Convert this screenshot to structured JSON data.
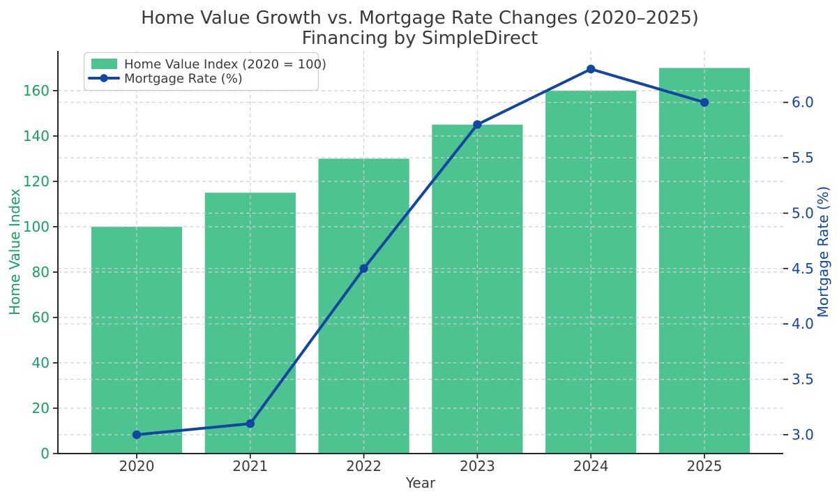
{
  "chart_data": {
    "type": "bar+line",
    "title": "Home Value Growth vs. Mortgage Rate Changes (2020–2025)",
    "subtitle": "Financing by SimpleDirect",
    "xlabel": "Year",
    "categories": [
      "2020",
      "2021",
      "2022",
      "2023",
      "2024",
      "2025"
    ],
    "series": [
      {
        "name": "Home Value Index (2020 = 100)",
        "type": "bar",
        "axis": "left",
        "color": "#4dc490",
        "values": [
          100,
          115,
          130,
          145,
          160,
          170
        ]
      },
      {
        "name": "Mortgage Rate (%)",
        "type": "line",
        "axis": "right",
        "color": "#1246a0",
        "values": [
          3.0,
          3.1,
          4.5,
          5.8,
          6.3,
          6.0
        ]
      }
    ],
    "left_axis": {
      "label": "Home Value Index",
      "color": "#16a05e",
      "ticks": [
        0,
        20,
        40,
        60,
        80,
        100,
        120,
        140,
        160
      ],
      "range": [
        0,
        177.5
      ]
    },
    "right_axis": {
      "label": "Mortgage Rate (%)",
      "color": "#1246a0",
      "ticks": [
        3.0,
        3.5,
        4.0,
        4.5,
        5.0,
        5.5,
        6.0
      ],
      "decimals": 1,
      "range": [
        2.83,
        6.464
      ]
    },
    "x_axis": {
      "color": "#3a3a3a"
    },
    "legend": {
      "position": "upper left"
    },
    "grid": true,
    "colors": {
      "spine": "#262626",
      "grid": "#cfcfcf",
      "title": "#3a3a3a",
      "background": "#ffffff"
    }
  }
}
